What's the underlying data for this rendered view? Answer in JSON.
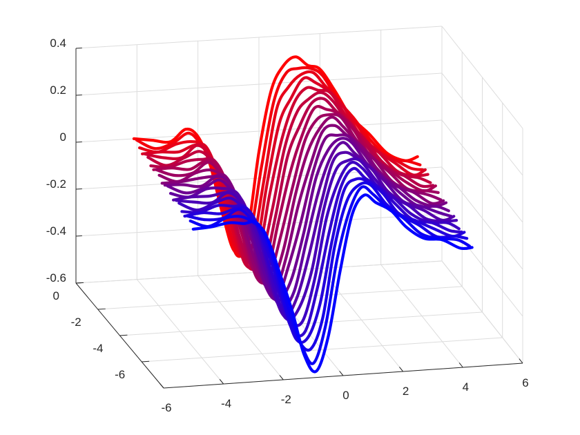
{
  "chart_data": {
    "type": "line",
    "subtype": "3d-waterfall",
    "title": "",
    "xlabel": "",
    "ylabel": "",
    "zlabel": "",
    "xlim": [
      -6,
      6
    ],
    "ylim": [
      -8,
      0
    ],
    "zlim": [
      -0.6,
      0.4
    ],
    "x_ticks": [
      -6,
      -4,
      -2,
      0,
      2,
      4,
      6
    ],
    "x_tick_labels": [
      "-6",
      "-4",
      "-2",
      "0",
      "2",
      "4",
      "6"
    ],
    "y_ticks": [
      0,
      -2,
      -4,
      -6
    ],
    "y_tick_labels": [
      "0",
      "-2",
      "-4",
      "-6"
    ],
    "z_ticks": [
      0.4,
      0.2,
      0,
      -0.2,
      -0.4,
      -0.6
    ],
    "z_tick_labels": [
      "0.4",
      "0.2",
      "0",
      "-0.2",
      "-0.4",
      "-0.6"
    ],
    "grid": true,
    "legend": "none",
    "colormap": {
      "front": "#0000ff",
      "back": "#ff0000"
    },
    "curve_count": 22,
    "curve_y_range": [
      0,
      -7
    ],
    "x_samples": [
      -4.1,
      -3.5,
      -2.9,
      -2.4,
      -2.0,
      -1.6,
      -1.2,
      -0.8,
      -0.4,
      0.0,
      0.4,
      0.8,
      1.2,
      1.6,
      2.0,
      2.5,
      3.0,
      3.6,
      4.2,
      4.8,
      5.2
    ],
    "z_back": [
      0.0,
      -0.02,
      -0.01,
      0.02,
      -0.01,
      -0.12,
      -0.35,
      -0.5,
      -0.44,
      -0.1,
      0.18,
      0.27,
      0.3,
      0.28,
      0.24,
      0.15,
      0.05,
      -0.05,
      -0.12,
      -0.16,
      -0.16
    ],
    "z_front": [
      0.02,
      0.01,
      0.02,
      0.03,
      0.01,
      -0.06,
      -0.2,
      -0.38,
      -0.55,
      -0.63,
      -0.5,
      -0.2,
      0.02,
      0.1,
      0.08,
      0.02,
      -0.04,
      -0.09,
      -0.12,
      -0.14,
      -0.15
    ]
  }
}
